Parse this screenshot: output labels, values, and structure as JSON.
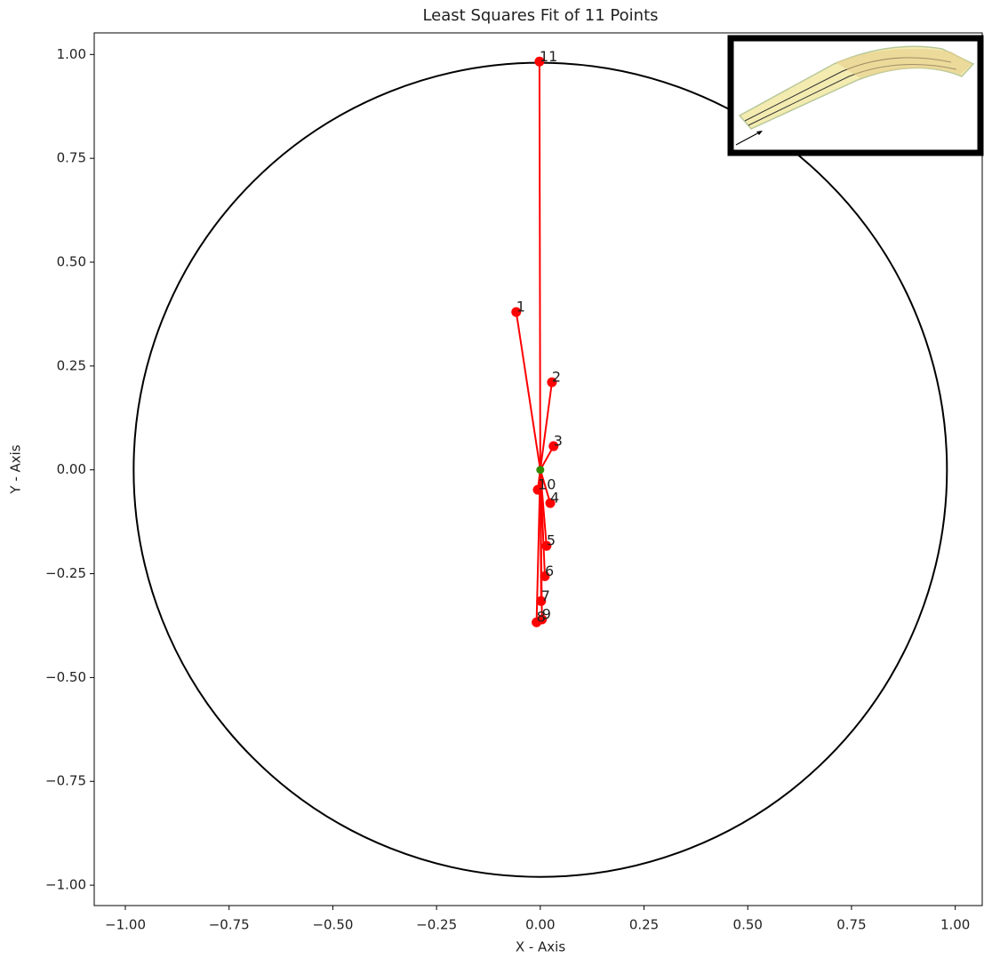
{
  "chart_data": {
    "type": "scatter",
    "title": "Least Squares Fit of 11 Points",
    "x_label": "X - Axis",
    "y_label": "Y - Axis",
    "x": [
      -0.058,
      0.028,
      0.032,
      0.024,
      0.015,
      0.011,
      0.002,
      -0.009,
      0.004,
      -0.006,
      -0.002
    ],
    "values": [
      0.38,
      0.211,
      0.057,
      -0.08,
      -0.183,
      -0.256,
      -0.316,
      -0.367,
      -0.36,
      -0.048,
      0.983
    ],
    "labels": [
      "1",
      "2",
      "3",
      "4",
      "5",
      "6",
      "7",
      "8",
      "9",
      "10",
      "11"
    ],
    "color": "#ff0000",
    "center": {
      "x": 0,
      "y": 0,
      "color": "#2e8b00"
    },
    "circle": {
      "x": 0,
      "y": 0,
      "r": 0.98,
      "color": "#000000"
    },
    "xlim": [
      -1.075,
      1.065
    ],
    "ylim": [
      -1.049,
      1.052
    ],
    "xticks": [
      {
        "value": -1,
        "label": "−1.00"
      },
      {
        "value": -0.75,
        "label": "−0.75"
      },
      {
        "value": -0.5,
        "label": "−0.50"
      },
      {
        "value": -0.25,
        "label": "−0.25"
      },
      {
        "value": 0,
        "label": "0.00"
      },
      {
        "value": 0.25,
        "label": "0.25"
      },
      {
        "value": 0.5,
        "label": "0.50"
      },
      {
        "value": 0.75,
        "label": "0.75"
      },
      {
        "value": 1,
        "label": "1.00"
      }
    ],
    "yticks": [
      {
        "value": -1,
        "label": "−1.00"
      },
      {
        "value": -0.75,
        "label": "−0.75"
      },
      {
        "value": -0.5,
        "label": "−0.50"
      },
      {
        "value": -0.25,
        "label": "−0.25"
      },
      {
        "value": 0,
        "label": "0.00"
      },
      {
        "value": 0.25,
        "label": "0.25"
      },
      {
        "value": 0.5,
        "label": "0.50"
      },
      {
        "value": 0.75,
        "label": "0.75"
      },
      {
        "value": 1,
        "label": "1.00"
      }
    ]
  }
}
